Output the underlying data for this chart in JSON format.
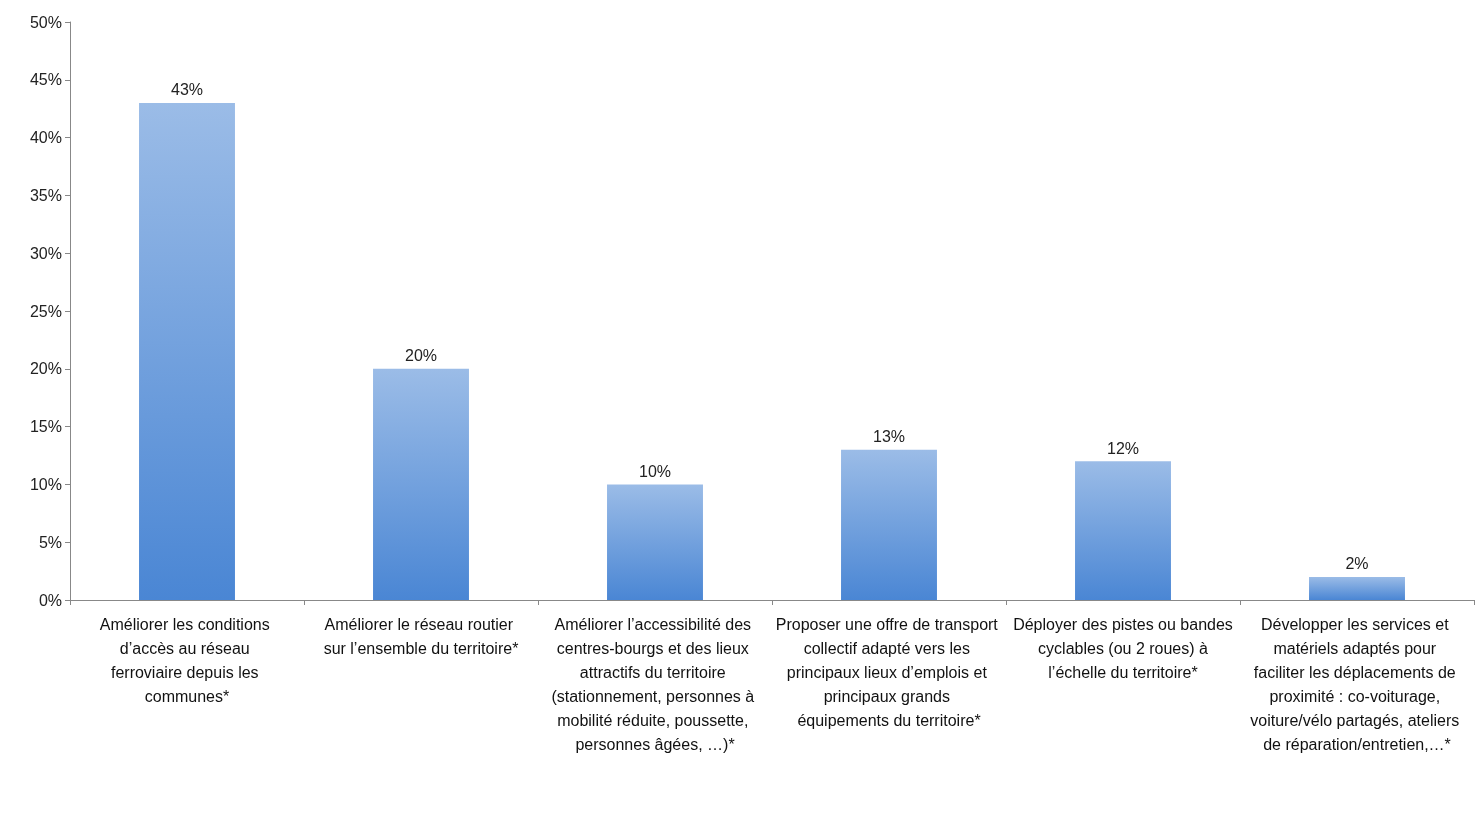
{
  "chart_data": {
    "type": "bar",
    "categories": [
      "Améliorer les conditions d’accès au réseau ferroviaire depuis les communes*",
      "Améliorer le réseau routier sur l’ensemble du territoire*",
      "Améliorer l’accessibilité des centres-bourgs et des lieux attractifs du territoire (stationnement, personnes à mobilité réduite, poussette, personnes âgées, …)*",
      "Proposer une offre de transport collectif adapté vers les principaux lieux d’emplois et principaux grands équipements du territoire*",
      "Déployer des pistes ou bandes cyclables (ou 2 roues) à l’échelle du territoire*",
      "Développer les services et matériels adaptés pour faciliter les déplacements de proximité : co-voiturage, voiture/vélo partagés, ateliers de réparation/entretien,…*"
    ],
    "values": [
      43,
      20,
      10,
      13,
      12,
      2
    ],
    "value_labels": [
      "43%",
      "20%",
      "10%",
      "13%",
      "12%",
      "2%"
    ],
    "color": "#4a86d4",
    "ylim": [
      0,
      50
    ],
    "yticks": [
      {
        "value": 0,
        "label": "0%"
      },
      {
        "value": 5,
        "label": "5%"
      },
      {
        "value": 10,
        "label": "10%"
      },
      {
        "value": 15,
        "label": "15%"
      },
      {
        "value": 20,
        "label": "20%"
      },
      {
        "value": 25,
        "label": "25%"
      },
      {
        "value": 30,
        "label": "30%"
      },
      {
        "value": 35,
        "label": "35%"
      },
      {
        "value": 40,
        "label": "40%"
      },
      {
        "value": 45,
        "label": "45%"
      },
      {
        "value": 50,
        "label": "50%"
      }
    ],
    "grid": false
  }
}
